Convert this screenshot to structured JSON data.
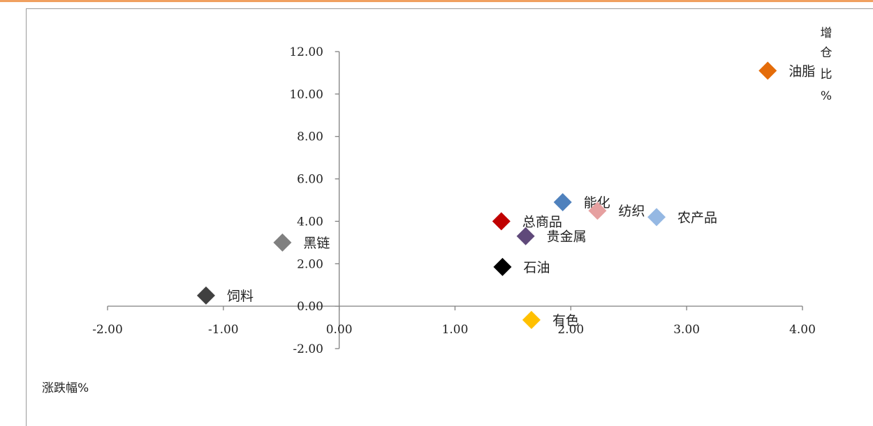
{
  "chart_data": {
    "type": "scatter",
    "title": "",
    "xlabel": "涨跌幅%",
    "ylabel_chars": [
      "增",
      "仓",
      "比",
      "%"
    ],
    "xlim": [
      -2,
      4
    ],
    "ylim": [
      -2,
      12
    ],
    "x_ticks": [
      "-2.00",
      "-1.00",
      "0.00",
      "1.00",
      "2.00",
      "3.00",
      "4.00"
    ],
    "y_ticks": [
      "12.00",
      "10.00",
      "8.00",
      "6.00",
      "4.00",
      "2.00",
      "0.00",
      "-2.00"
    ],
    "points": [
      {
        "label": "油脂",
        "x": 3.7,
        "y": 11.1,
        "color": "#e46c0a"
      },
      {
        "label": "能化",
        "x": 1.93,
        "y": 4.9,
        "color": "#4f81bd"
      },
      {
        "label": "纺织",
        "x": 2.23,
        "y": 4.5,
        "color": "#e6a0a0"
      },
      {
        "label": "农产品",
        "x": 2.74,
        "y": 4.2,
        "color": "#95b8e3"
      },
      {
        "label": "总商品",
        "x": 1.4,
        "y": 4.0,
        "color": "#c00000"
      },
      {
        "label": "贵金属",
        "x": 1.61,
        "y": 3.3,
        "color": "#5f497a"
      },
      {
        "label": "黑链",
        "x": -0.49,
        "y": 3.0,
        "color": "#808080"
      },
      {
        "label": "石油",
        "x": 1.41,
        "y": 1.85,
        "color": "#000000"
      },
      {
        "label": "饲料",
        "x": -1.15,
        "y": 0.5,
        "color": "#404040"
      },
      {
        "label": "有色",
        "x": 1.66,
        "y": -0.65,
        "color": "#ffc000"
      }
    ]
  }
}
